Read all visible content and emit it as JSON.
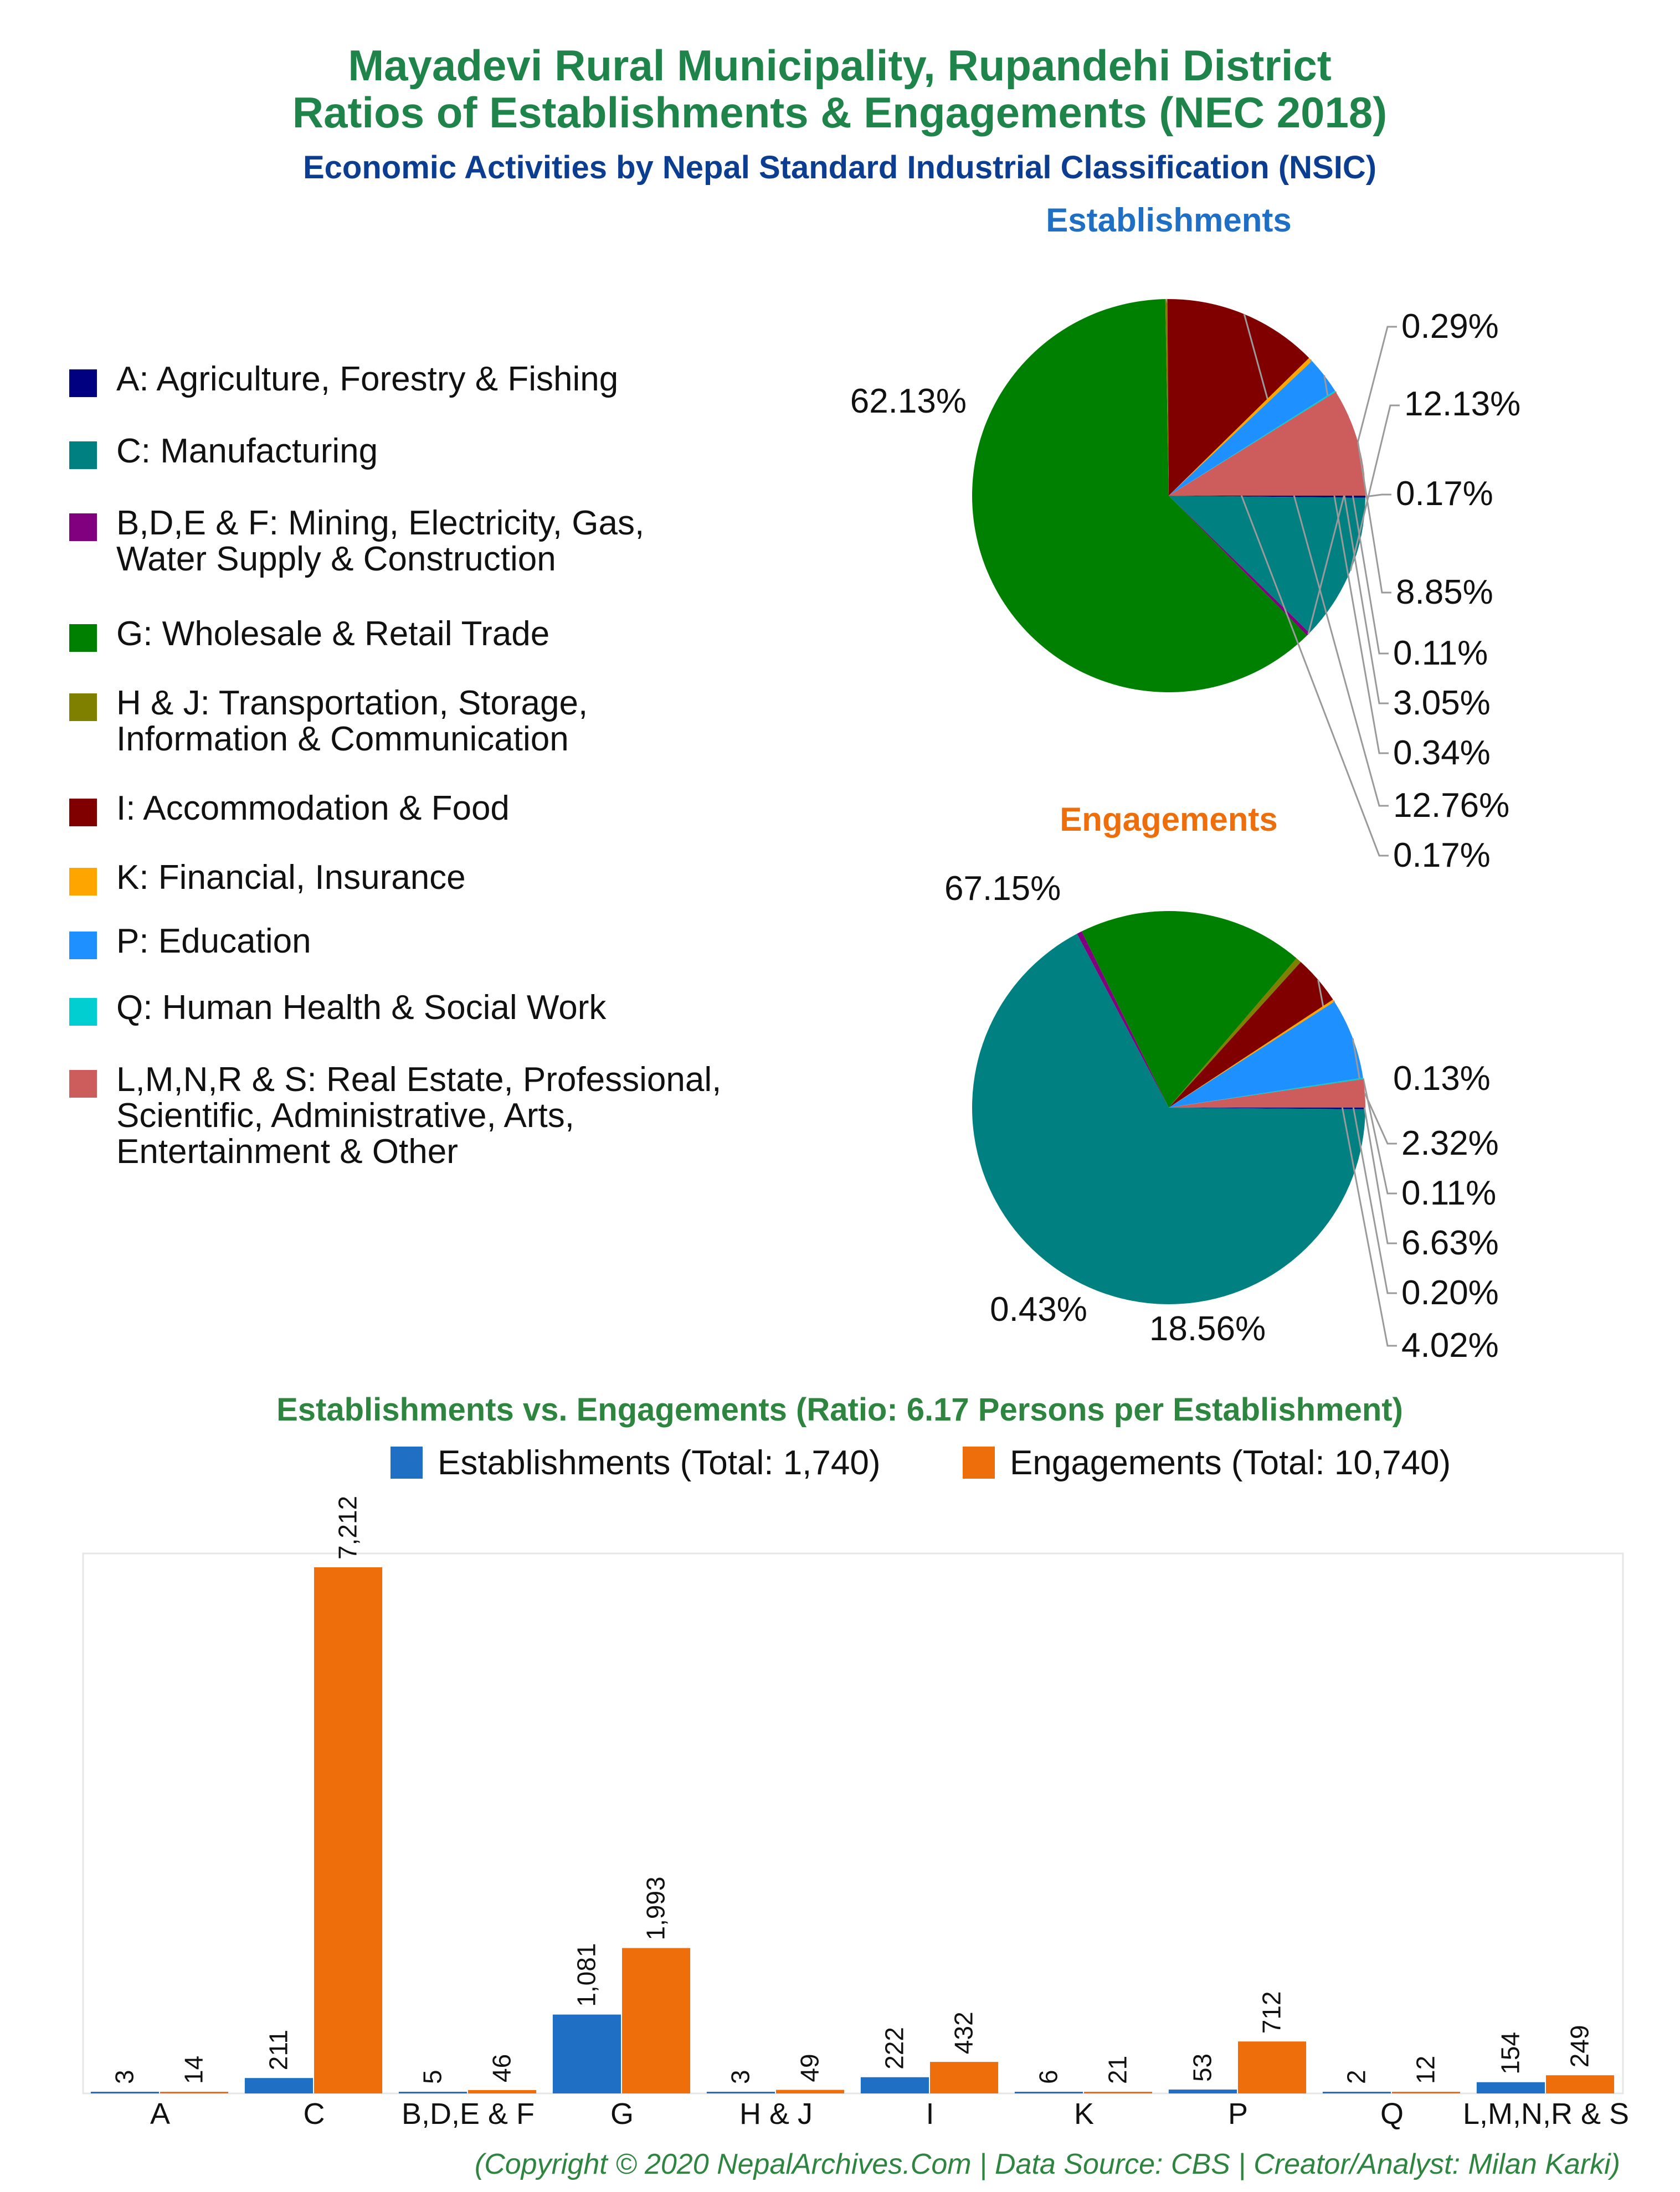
{
  "title": {
    "line1": "Mayadevi Rural Municipality, Rupandehi District",
    "line2": "Ratios of Establishments & Engagements (NEC 2018)",
    "line3": "Economic Activities by Nepal Standard Industrial Classification (NSIC)"
  },
  "legend": [
    {
      "label": "A: Agriculture, Forestry & Fishing",
      "color": "#000080"
    },
    {
      "label": "C: Manufacturing",
      "color": "#008080"
    },
    {
      "label": "B,D,E & F: Mining, Electricity, Gas,",
      "label2": "Water Supply & Construction",
      "color": "#800080"
    },
    {
      "label": "G: Wholesale & Retail Trade",
      "color": "#008000"
    },
    {
      "label": "H & J: Transportation, Storage,",
      "label2": "Information & Communication",
      "color": "#808000"
    },
    {
      "label": "I: Accommodation & Food",
      "color": "#800000"
    },
    {
      "label": "K: Financial, Insurance",
      "color": "#FFA500"
    },
    {
      "label": "P: Education",
      "color": "#1E90FF"
    },
    {
      "label": "Q: Human Health & Social Work",
      "color": "#00CED1"
    },
    {
      "label": "L,M,N,R & S: Real Estate, Professional,",
      "label2": "Scientific, Administrative, Arts,",
      "label3": "Entertainment & Other",
      "color": "#CD5C5C"
    }
  ],
  "chart_data": [
    {
      "type": "pie",
      "title": "Establishments",
      "slices": [
        {
          "category": "A",
          "value": 0.17,
          "label": "0.17%"
        },
        {
          "category": "C",
          "value": 12.13,
          "label": "12.13%"
        },
        {
          "category": "B,D,E & F",
          "value": 0.29,
          "label": "0.29%"
        },
        {
          "category": "G",
          "value": 62.13,
          "label": "62.13%"
        },
        {
          "category": "H & J",
          "value": 0.17,
          "label": "0.17%"
        },
        {
          "category": "I",
          "value": 12.76,
          "label": "12.76%"
        },
        {
          "category": "K",
          "value": 0.34,
          "label": "0.34%"
        },
        {
          "category": "P",
          "value": 3.05,
          "label": "3.05%"
        },
        {
          "category": "Q",
          "value": 0.11,
          "label": "0.11%"
        },
        {
          "category": "L,M,N,R & S",
          "value": 8.85,
          "label": "8.85%"
        }
      ]
    },
    {
      "type": "pie",
      "title": "Engagements",
      "slices": [
        {
          "category": "A",
          "value": 0.13,
          "label": "0.13%"
        },
        {
          "category": "C",
          "value": 67.15,
          "label": "67.15%"
        },
        {
          "category": "B,D,E & F",
          "value": 0.43,
          "label": "0.43%"
        },
        {
          "category": "G",
          "value": 18.56,
          "label": "18.56%"
        },
        {
          "category": "H & J",
          "value": 0.46,
          "label": ""
        },
        {
          "category": "I",
          "value": 4.02,
          "label": "4.02%"
        },
        {
          "category": "K",
          "value": 0.2,
          "label": "0.20%"
        },
        {
          "category": "P",
          "value": 6.63,
          "label": "6.63%"
        },
        {
          "category": "Q",
          "value": 0.11,
          "label": "0.11%"
        },
        {
          "category": "L,M,N,R & S",
          "value": 2.32,
          "label": "2.32%"
        }
      ]
    },
    {
      "type": "bar",
      "title": "Establishments vs. Engagements (Ratio: 6.17 Persons per Establishment)",
      "categories": [
        "A",
        "C",
        "B,D,E & F",
        "G",
        "H & J",
        "I",
        "K",
        "P",
        "Q",
        "L,M,N,R & S"
      ],
      "series": [
        {
          "name": "Establishments (Total: 1,740)",
          "color": "#1f6fc5",
          "values": [
            3,
            211,
            5,
            1081,
            3,
            222,
            6,
            53,
            2,
            154
          ],
          "labels": [
            "3",
            "211",
            "5",
            "1,081",
            "3",
            "222",
            "6",
            "53",
            "2",
            "154"
          ]
        },
        {
          "name": "Engagements (Total: 10,740)",
          "color": "#ee6e0c",
          "values": [
            14,
            7212,
            46,
            1993,
            49,
            432,
            21,
            712,
            12,
            249
          ],
          "labels": [
            "14",
            "7,212",
            "46",
            "1,993",
            "49",
            "432",
            "21",
            "712",
            "12",
            "249"
          ]
        }
      ],
      "ylim": [
        0,
        7212
      ]
    }
  ],
  "footer": "(Copyright © 2020 NepalArchives.Com | Data Source: CBS | Creator/Analyst: Milan Karki)"
}
